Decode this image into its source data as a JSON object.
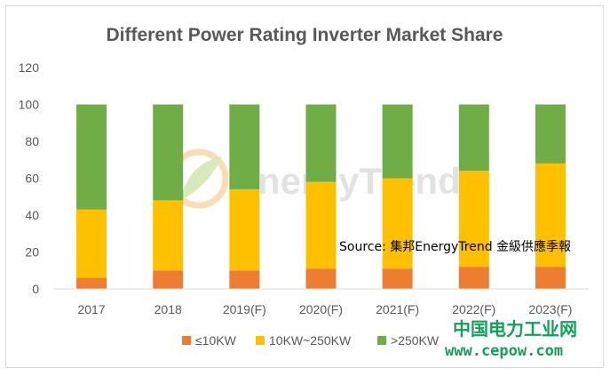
{
  "chart_data": {
    "type": "bar",
    "stacked": true,
    "title": "Different Power Rating Inverter Market Share",
    "categories": [
      "2017",
      "2018",
      "2019(F)",
      "2020(F)",
      "2021(F)",
      "2022(F)",
      "2023(F)"
    ],
    "series": [
      {
        "name": "≤10KW",
        "color": "#ed7d31",
        "values": [
          6,
          10,
          10,
          11,
          11,
          12,
          12
        ]
      },
      {
        "name": "10KW~250KW",
        "color": "#ffc000",
        "values": [
          37,
          38,
          44,
          47,
          49,
          52,
          56
        ]
      },
      {
        "name": ">250KW",
        "color": "#70ad47",
        "values": [
          57,
          52,
          46,
          42,
          40,
          36,
          32
        ]
      }
    ],
    "ylim": [
      0,
      120
    ],
    "yticks": [
      0,
      20,
      40,
      60,
      80,
      100,
      120
    ],
    "grid": false,
    "legend": "bottom",
    "annotation": "Source: 集邦EnergyTrend 金級供應季報"
  },
  "watermark": {
    "logo_text": "EnergyTrend",
    "site_cn": "中国电力工业网",
    "site_url": "www.cepow.com",
    "logo_color": "#f0a030",
    "site_color": "#13a05a"
  }
}
